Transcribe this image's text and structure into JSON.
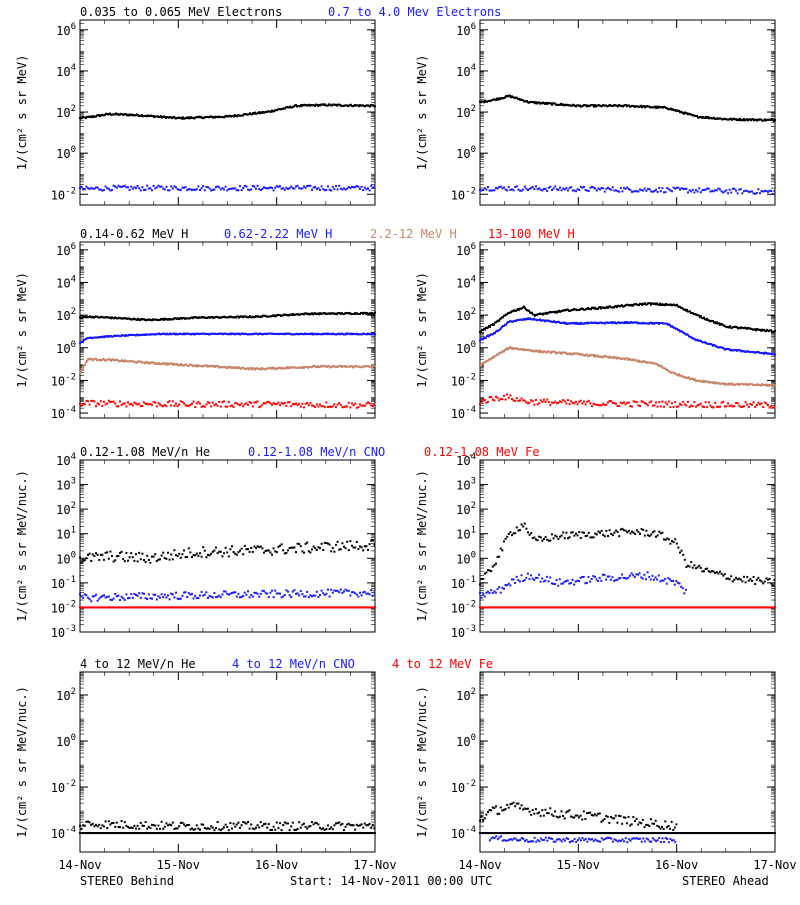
{
  "colors": {
    "black": "#000000",
    "blue": "#1a1aff",
    "tan": "#c8866a",
    "red": "#ff0000"
  },
  "xaxis": {
    "tick_labels": [
      "14-Nov",
      "15-Nov",
      "16-Nov",
      "17-Nov"
    ],
    "range_days": [
      0,
      3
    ]
  },
  "footer": {
    "left": "STEREO Behind",
    "center": "Start: 14-Nov-2011 00:00 UTC",
    "right": "STEREO Ahead"
  },
  "rows": [
    {
      "legend": [
        {
          "text": "0.035 to 0.065 MeV Electrons",
          "color": "black"
        },
        {
          "text": "0.7 to 4.0 Mev Electrons",
          "color": "blue"
        }
      ],
      "ylabel": "1/(cm² s sr MeV)",
      "y_ticks": [
        {
          "label": "10",
          "exp": "6",
          "value": 1000000.0
        },
        {
          "label": "10",
          "exp": "4",
          "value": 10000.0
        },
        {
          "label": "10",
          "exp": "2",
          "value": 100.0
        },
        {
          "label": "10",
          "exp": "0",
          "value": 1.0
        },
        {
          "label": "10",
          "exp": "-2",
          "value": 0.01
        }
      ]
    },
    {
      "legend": [
        {
          "text": "0.14-0.62 MeV H",
          "color": "black"
        },
        {
          "text": "0.62-2.22 MeV H",
          "color": "blue"
        },
        {
          "text": "2.2-12 MeV H",
          "color": "tan"
        },
        {
          "text": "13-100 MeV H",
          "color": "red"
        }
      ],
      "ylabel": "1/(cm² s sr MeV)",
      "y_ticks": [
        {
          "label": "10",
          "exp": "6",
          "value": 1000000.0
        },
        {
          "label": "10",
          "exp": "4",
          "value": 10000.0
        },
        {
          "label": "10",
          "exp": "2",
          "value": 100.0
        },
        {
          "label": "10",
          "exp": "0",
          "value": 1.0
        },
        {
          "label": "10",
          "exp": "-2",
          "value": 0.01
        },
        {
          "label": "10",
          "exp": "-4",
          "value": 0.0001
        }
      ]
    },
    {
      "legend": [
        {
          "text": "0.12-1.08 MeV/n He",
          "color": "black"
        },
        {
          "text": "0.12-1.08 MeV/n CNO",
          "color": "blue"
        },
        {
          "text": "0.12-1.08 MeV Fe",
          "color": "red"
        }
      ],
      "ylabel": "1/(cm² s sr MeV/nuc.)",
      "y_ticks": [
        {
          "label": "10",
          "exp": "4",
          "value": 10000.0
        },
        {
          "label": "10",
          "exp": "3",
          "value": 1000.0
        },
        {
          "label": "10",
          "exp": "2",
          "value": 100.0
        },
        {
          "label": "10",
          "exp": "1",
          "value": 10.0
        },
        {
          "label": "10",
          "exp": "0",
          "value": 1.0
        },
        {
          "label": "10",
          "exp": "-1",
          "value": 0.1
        },
        {
          "label": "10",
          "exp": "-2",
          "value": 0.01
        },
        {
          "label": "10",
          "exp": "-3",
          "value": 0.001
        }
      ]
    },
    {
      "legend": [
        {
          "text": "4 to 12 MeV/n He",
          "color": "black"
        },
        {
          "text": "4 to 12 MeV/n CNO",
          "color": "blue"
        },
        {
          "text": "4 to 12 MeV Fe",
          "color": "red"
        }
      ],
      "ylabel": "1/(cm² s sr MeV/nuc.)",
      "y_ticks": [
        {
          "label": "10",
          "exp": "2",
          "value": 100.0
        },
        {
          "label": "10",
          "exp": "0",
          "value": 1.0
        },
        {
          "label": "10",
          "exp": "-2",
          "value": 0.01
        },
        {
          "label": "10",
          "exp": "-4",
          "value": 0.0001
        }
      ]
    }
  ],
  "chart_data": [
    {
      "type": "line",
      "panel": "row1-behind",
      "yscale": "log",
      "ylim": [
        0.003,
        3000000.0
      ],
      "xlim": [
        0,
        3
      ],
      "series": [
        {
          "name": "0.035 to 0.065 MeV Electrons",
          "color": "black",
          "scatter": 0.04,
          "x": [
            0.0,
            0.08,
            0.3,
            0.6,
            1.0,
            1.5,
            1.9,
            2.2,
            2.5,
            3.0
          ],
          "y": [
            50,
            55,
            80,
            70,
            50,
            60,
            100,
            200,
            220,
            200
          ]
        },
        {
          "name": "0.7 to 4.0 Mev Electrons",
          "color": "blue",
          "scatter": 0.12,
          "x": [
            0.0,
            0.08,
            0.3,
            1.0,
            2.0,
            3.0
          ],
          "y": [
            0.018,
            0.018,
            0.02,
            0.02,
            0.02,
            0.02
          ]
        }
      ]
    },
    {
      "type": "line",
      "panel": "row1-ahead",
      "yscale": "log",
      "ylim": [
        0.003,
        3000000.0
      ],
      "xlim": [
        0,
        3
      ],
      "series": [
        {
          "name": "0.035 to 0.065 MeV Electrons",
          "color": "black",
          "scatter": 0.04,
          "x": [
            0.0,
            0.15,
            0.3,
            0.5,
            1.0,
            1.5,
            1.9,
            2.2,
            2.5,
            3.0
          ],
          "y": [
            300,
            400,
            600,
            300,
            200,
            200,
            160,
            60,
            45,
            40
          ]
        },
        {
          "name": "0.7 to 4.0 Mev Electrons",
          "color": "blue",
          "scatter": 0.12,
          "x": [
            0.0,
            1.0,
            2.0,
            3.0
          ],
          "y": [
            0.02,
            0.018,
            0.016,
            0.013
          ]
        }
      ]
    },
    {
      "type": "line",
      "panel": "row2-behind",
      "yscale": "log",
      "ylim": [
        5e-05,
        3000000.0
      ],
      "xlim": [
        0,
        3
      ],
      "series": [
        {
          "name": "0.14-0.62 MeV H",
          "color": "black",
          "scatter": 0.04,
          "x": [
            0.0,
            0.08,
            0.3,
            0.7,
            1.2,
            1.8,
            2.3,
            3.0
          ],
          "y": [
            70,
            80,
            70,
            50,
            70,
            80,
            120,
            130
          ]
        },
        {
          "name": "0.62-2.22 MeV H",
          "color": "blue",
          "scatter": 0.03,
          "x": [
            0.0,
            0.08,
            0.3,
            0.8,
            1.5,
            2.0,
            3.0
          ],
          "y": [
            2,
            4,
            5,
            7,
            7,
            7,
            7
          ]
        },
        {
          "name": "2.2-12 MeV H",
          "color": "tan",
          "scatter": 0.05,
          "x": [
            0.0,
            0.08,
            0.3,
            0.7,
            1.2,
            1.8,
            2.4,
            3.0
          ],
          "y": [
            0.03,
            0.2,
            0.18,
            0.12,
            0.08,
            0.05,
            0.07,
            0.07
          ]
        },
        {
          "name": "13-100 MeV H",
          "color": "red",
          "scatter": 0.18,
          "x": [
            0.0,
            0.08,
            1.0,
            2.0,
            3.0
          ],
          "y": [
            0.0004,
            0.0004,
            0.00035,
            0.00035,
            0.0003
          ]
        }
      ]
    },
    {
      "type": "line",
      "panel": "row2-ahead",
      "yscale": "log",
      "ylim": [
        5e-05,
        3000000.0
      ],
      "xlim": [
        0,
        3
      ],
      "series": [
        {
          "name": "0.14-0.62 MeV H",
          "color": "black",
          "scatter": 0.05,
          "x": [
            0.0,
            0.15,
            0.3,
            0.45,
            0.55,
            0.9,
            1.3,
            1.7,
            2.0,
            2.2,
            2.5,
            3.0
          ],
          "y": [
            10,
            30,
            150,
            300,
            100,
            200,
            300,
            500,
            400,
            100,
            20,
            10
          ]
        },
        {
          "name": "0.62-2.22 MeV H",
          "color": "blue",
          "scatter": 0.04,
          "x": [
            0.0,
            0.15,
            0.3,
            0.5,
            0.9,
            1.5,
            1.9,
            2.2,
            2.5,
            3.0
          ],
          "y": [
            3,
            8,
            40,
            60,
            30,
            35,
            30,
            3,
            0.8,
            0.4
          ]
        },
        {
          "name": "2.2-12 MeV H",
          "color": "tan",
          "scatter": 0.05,
          "x": [
            0.0,
            0.15,
            0.3,
            0.6,
            1.0,
            1.5,
            1.8,
            1.95,
            2.2,
            2.5,
            3.0
          ],
          "y": [
            0.08,
            0.3,
            1.0,
            0.6,
            0.4,
            0.2,
            0.1,
            0.03,
            0.01,
            0.006,
            0.005
          ]
        },
        {
          "name": "13-100 MeV H",
          "color": "red",
          "scatter": 0.18,
          "x": [
            0.0,
            0.15,
            0.25,
            0.5,
            1.0,
            2.0,
            3.0
          ],
          "y": [
            0.0005,
            0.0008,
            0.001,
            0.0005,
            0.0004,
            0.00035,
            0.0003
          ]
        }
      ]
    },
    {
      "type": "scatter",
      "panel": "row3-behind",
      "yscale": "log",
      "ylim": [
        0.001,
        10000.0
      ],
      "xlim": [
        0,
        3
      ],
      "series": [
        {
          "name": "0.12-1.08 MeV/n He",
          "color": "black",
          "scatter": 0.22,
          "x": [
            0.0,
            0.08,
            0.3,
            0.7,
            1.2,
            1.7,
            2.2,
            2.6,
            3.0
          ],
          "y": [
            1.0,
            1.0,
            1.2,
            1.0,
            1.8,
            2.0,
            2.5,
            3.0,
            3.5
          ]
        },
        {
          "name": "0.12-1.08 MeV/n CNO",
          "color": "blue",
          "scatter": 0.15,
          "x": [
            0.0,
            0.08,
            1.0,
            2.0,
            3.0
          ],
          "y": [
            0.025,
            0.025,
            0.03,
            0.035,
            0.04
          ]
        },
        {
          "name": "0.12-1.08 MeV Fe",
          "color": "red",
          "scatter": 0.0,
          "x": [
            0.0,
            3.0
          ],
          "y": [
            0.01,
            0.01
          ]
        }
      ]
    },
    {
      "type": "scatter",
      "panel": "row3-ahead",
      "yscale": "log",
      "ylim": [
        0.001,
        10000.0
      ],
      "xlim": [
        0,
        3
      ],
      "series": [
        {
          "name": "0.12-1.08 MeV/n He",
          "color": "black",
          "scatter": 0.15,
          "x": [
            0.0,
            0.1,
            0.2,
            0.3,
            0.45,
            0.55,
            0.8,
            1.2,
            1.6,
            1.8,
            2.0,
            2.1,
            2.3,
            2.6,
            3.0
          ],
          "y": [
            0.1,
            0.3,
            1.5,
            10,
            25,
            5,
            8,
            10,
            12,
            10,
            4,
            0.6,
            0.3,
            0.15,
            0.1
          ]
        },
        {
          "name": "0.12-1.08 MeV/n CNO",
          "color": "blue",
          "scatter": 0.15,
          "x": [
            0.0,
            0.2,
            0.3,
            0.5,
            0.8,
            1.2,
            1.7,
            2.0,
            2.1
          ],
          "y": [
            0.03,
            0.05,
            0.1,
            0.2,
            0.1,
            0.15,
            0.2,
            0.1,
            0.04
          ]
        },
        {
          "name": "0.12-1.08 MeV Fe",
          "color": "red",
          "scatter": 0.0,
          "x": [
            0.0,
            3.0
          ],
          "y": [
            0.01,
            0.01
          ]
        }
      ]
    },
    {
      "type": "scatter",
      "panel": "row4-behind",
      "yscale": "log",
      "ylim": [
        1.5e-05,
        1000.0
      ],
      "xlim": [
        0,
        3
      ],
      "series": [
        {
          "name": "4 to 12 MeV/n He",
          "color": "black",
          "scatter": 0.18,
          "x": [
            0.0,
            0.08,
            1.0,
            2.0,
            3.0
          ],
          "y": [
            0.0002,
            0.00025,
            0.0002,
            0.0002,
            0.0002
          ]
        },
        {
          "name": "4 to 12 MeV/n He (floor)",
          "color": "black",
          "scatter": 0.0,
          "x": [
            0.0,
            3.0
          ],
          "y": [
            0.0001,
            0.0001
          ]
        }
      ]
    },
    {
      "type": "scatter",
      "panel": "row4-ahead",
      "yscale": "log",
      "ylim": [
        1.5e-05,
        1000.0
      ],
      "xlim": [
        0,
        3
      ],
      "series": [
        {
          "name": "4 to 12 MeV/n He",
          "color": "black",
          "scatter": 0.2,
          "x": [
            0.0,
            0.1,
            0.3,
            0.5,
            0.8,
            1.2,
            1.6,
            2.0
          ],
          "y": [
            0.0004,
            0.0008,
            0.0015,
            0.001,
            0.0007,
            0.0005,
            0.0003,
            0.0002
          ]
        },
        {
          "name": "4 to 12 MeV/n CNO",
          "color": "blue",
          "scatter": 0.1,
          "x": [
            0.1,
            0.5,
            1.0,
            1.5,
            2.0
          ],
          "y": [
            6e-05,
            5e-05,
            5e-05,
            5e-05,
            5e-05
          ]
        },
        {
          "name": "4 to 12 MeV/n He (floor)",
          "color": "black",
          "scatter": 0.0,
          "x": [
            0.0,
            3.0
          ],
          "y": [
            0.0001,
            0.0001
          ]
        }
      ]
    }
  ]
}
